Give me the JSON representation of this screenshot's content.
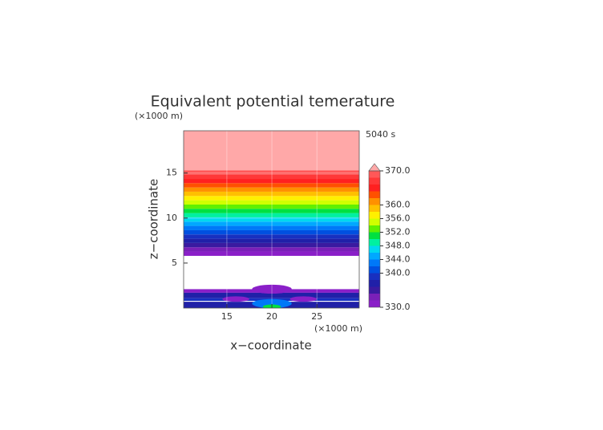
{
  "chart_data": {
    "type": "contour",
    "title": "Equivalent potential temerature",
    "xlabel": "x−coordinate",
    "ylabel": "z−coordinate",
    "x_unit": "(×1000 m)",
    "y_unit": "(×1000 m)",
    "time_label": "5040 s",
    "xlim": [
      10.2,
      29.7
    ],
    "ylim": [
      0,
      19.7
    ],
    "xticks": [
      15,
      20,
      25
    ],
    "yticks": [
      5,
      10,
      15
    ],
    "grid": true,
    "clim": [
      330,
      370
    ],
    "cticks": [
      {
        "value": 330,
        "label": "330.0"
      },
      {
        "value": 340,
        "label": "340.0"
      },
      {
        "value": 344,
        "label": "344.0"
      },
      {
        "value": 348,
        "label": "348.0"
      },
      {
        "value": 352,
        "label": "352.0"
      },
      {
        "value": 356,
        "label": "356.0"
      },
      {
        "value": 360,
        "label": "360.0"
      },
      {
        "value": 370,
        "label": "370.0"
      }
    ],
    "level_step": 2,
    "level_colors": [
      "#8a1fc8",
      "#7a20b8",
      "#3a1aa0",
      "#2020a8",
      "#1830c0",
      "#0050e0",
      "#0078f8",
      "#00a8ff",
      "#00d8f0",
      "#00f0a0",
      "#00e040",
      "#60f000",
      "#d0ff00",
      "#fff000",
      "#ffc000",
      "#ff9000",
      "#ff5000",
      "#ff2020",
      "#ff3838",
      "#ff5858"
    ],
    "extend_color": "#ffa8a8",
    "bands_z": [
      5.8,
      6.28,
      6.75,
      7.23,
      7.7,
      8.18,
      8.65,
      9.13,
      9.6,
      10.08,
      10.55,
      11.03,
      11.5,
      11.98,
      12.45,
      12.93,
      13.4,
      13.88,
      14.35,
      14.83,
      15.3
    ],
    "lower_layers": [
      {
        "z": [
          1.7,
          2.1
        ],
        "value": 331
      },
      {
        "z": [
          1.1,
          1.7
        ],
        "value": 337
      },
      {
        "z": [
          0.8,
          1.1
        ],
        "value": 339
      },
      {
        "z": [
          0,
          0.7
        ],
        "value": 337
      }
    ],
    "features": [
      {
        "x": 20,
        "z": 2.1,
        "rx": 2.2,
        "rz": 0.5,
        "value": 331
      },
      {
        "x": 16,
        "z": 1.0,
        "rx": 1.5,
        "rz": 0.3,
        "value": 331
      },
      {
        "x": 23.5,
        "z": 1.0,
        "rx": 1.5,
        "rz": 0.3,
        "value": 331
      },
      {
        "x": 20,
        "z": 0.5,
        "rx": 2.2,
        "rz": 0.5,
        "value": 343
      },
      {
        "x": 20,
        "z": 0.15,
        "rx": 1,
        "rz": 0.25,
        "value": 350
      }
    ]
  }
}
